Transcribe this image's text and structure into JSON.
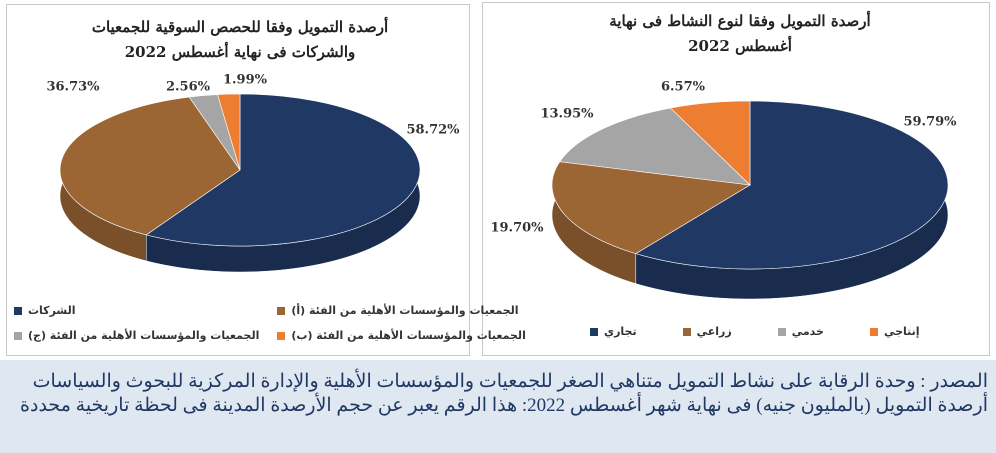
{
  "chart_data": [
    {
      "type": "pie",
      "title": "أرصدة التمويل وفقا للحصص السوقية للجمعيات والشركات فى نهاية أغسطس 2022",
      "categories": [
        "الشركات",
        "الجمعيات والمؤسسات الأهلية من الفئة (أ)",
        "الجمعيات والمؤسسات الأهلية من الفئة (ج)",
        "الجمعيات والمؤسسات الأهلية من الفئة (ب)"
      ],
      "values": [
        58.72,
        36.73,
        2.56,
        1.99
      ],
      "value_labels": [
        "58.72%",
        "36.73%",
        "2.56%",
        "1.99%"
      ],
      "colors": [
        "#203864",
        "#9b6634",
        "#a5a5a5",
        "#ed7d31"
      ]
    },
    {
      "type": "pie",
      "title": "أرصدة التمويل وفقا لنوع النشاط فى نهاية أغسطس 2022",
      "categories": [
        "تجاري",
        "زراعي",
        "خدمي",
        "إنتاجي"
      ],
      "values": [
        59.79,
        19.7,
        13.95,
        6.57
      ],
      "value_labels": [
        "59.79%",
        "19.70%",
        "13.95%",
        "6.57%"
      ],
      "colors": [
        "#203864",
        "#9b6634",
        "#a5a5a5",
        "#ed7d31"
      ]
    }
  ],
  "source": [
    "المصدر : وحدة الرقابة على نشاط التمويل متناهي الصغر للجمعيات والمؤسسات الأهلية والإدارة المركزية للبحوث والسياسات",
    "أرصدة التمويل (بالمليون جنيه) فى نهاية شهر أغسطس 2022: هذا الرقم يعبر عن حجم الأرصدة المدينة فى لحظة تاريخية محددة"
  ]
}
